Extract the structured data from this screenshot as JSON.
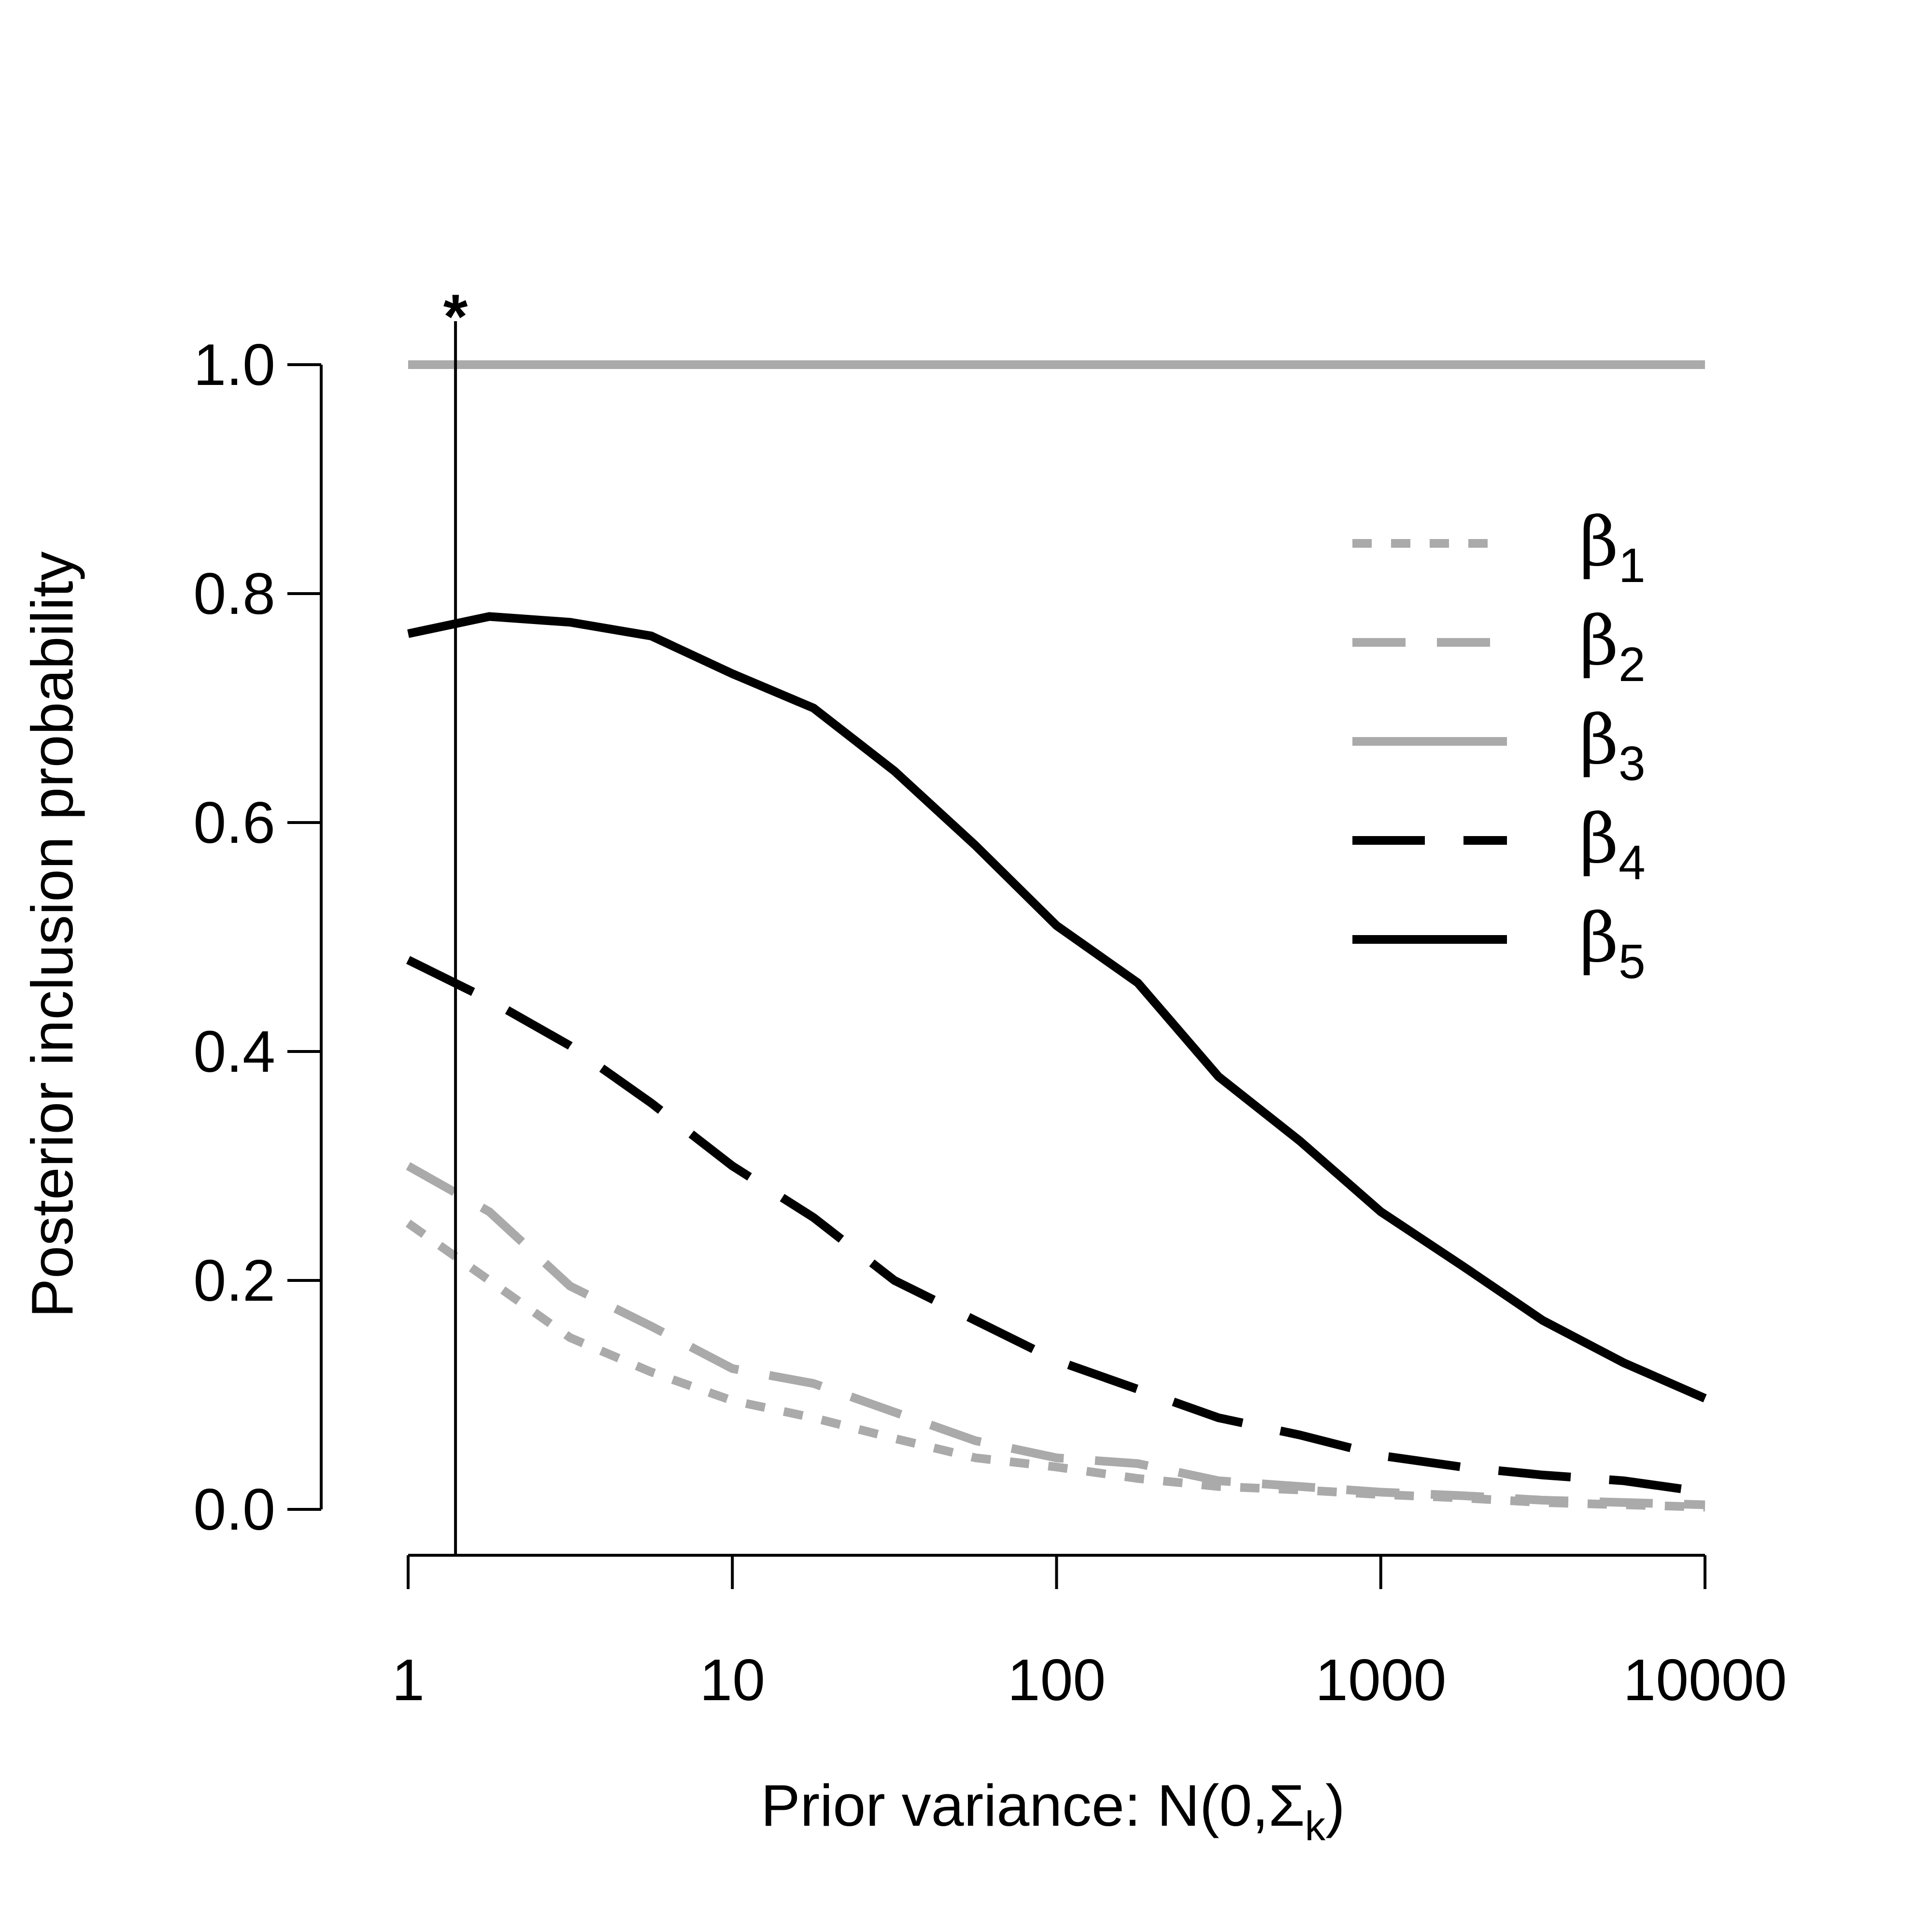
{
  "chart_data": {
    "type": "line",
    "xlabel": "Prior variance: N(0,Σ",
    "xlabel_sub": "k",
    "xlabel_tail": ")",
    "ylabel": "Posterior inclusion probability",
    "xscale": "log",
    "xlim": [
      1,
      10000
    ],
    "ylim": [
      0,
      1
    ],
    "x_ticks": [
      1,
      10,
      100,
      1000,
      10000
    ],
    "x_tick_labels": [
      "1",
      "10",
      "100",
      "1000",
      "10000"
    ],
    "y_ticks": [
      0,
      0.2,
      0.4,
      0.6,
      0.8,
      1.0
    ],
    "y_tick_labels": [
      "0.0",
      "0.2",
      "0.4",
      "0.6",
      "0.8",
      "1.0"
    ],
    "grid": false,
    "legend_position": "top-right",
    "marker": {
      "x": 1.4,
      "label": "*"
    },
    "x": [
      1,
      1.78,
      3.16,
      5.62,
      10,
      17.8,
      31.6,
      56.2,
      100,
      178,
      316,
      562,
      1000,
      1780,
      3160,
      5620,
      10000
    ],
    "series": [
      {
        "name": "β",
        "sub": "1",
        "color": "#aaaaaa",
        "dash": "dotted",
        "values": [
          0.25,
          0.2,
          0.15,
          0.12,
          0.095,
          0.08,
          0.062,
          0.045,
          0.037,
          0.027,
          0.02,
          0.017,
          0.013,
          0.01,
          0.006,
          0.004,
          0.002
        ]
      },
      {
        "name": "β",
        "sub": "2",
        "color": "#aaaaaa",
        "dash": "dashed",
        "values": [
          0.3,
          0.26,
          0.195,
          0.16,
          0.123,
          0.11,
          0.085,
          0.06,
          0.045,
          0.04,
          0.025,
          0.02,
          0.015,
          0.012,
          0.008,
          0.006,
          0.004
        ]
      },
      {
        "name": "β",
        "sub": "3",
        "color": "#aaaaaa",
        "dash": "solid",
        "values": [
          1.0,
          1.0,
          1.0,
          1.0,
          1.0,
          1.0,
          1.0,
          1.0,
          1.0,
          1.0,
          1.0,
          1.0,
          1.0,
          1.0,
          1.0,
          1.0,
          1.0
        ]
      },
      {
        "name": "β",
        "sub": "4",
        "color": "#000000",
        "dash": "longdash",
        "values": [
          0.48,
          0.445,
          0.405,
          0.355,
          0.3,
          0.255,
          0.2,
          0.165,
          0.13,
          0.105,
          0.08,
          0.065,
          0.047,
          0.037,
          0.03,
          0.025,
          0.015
        ]
      },
      {
        "name": "β",
        "sub": "5",
        "color": "#000000",
        "dash": "solid",
        "values": [
          0.765,
          0.78,
          0.775,
          0.763,
          0.73,
          0.7,
          0.645,
          0.58,
          0.51,
          0.46,
          0.378,
          0.322,
          0.26,
          0.213,
          0.165,
          0.128,
          0.097
        ]
      }
    ]
  }
}
